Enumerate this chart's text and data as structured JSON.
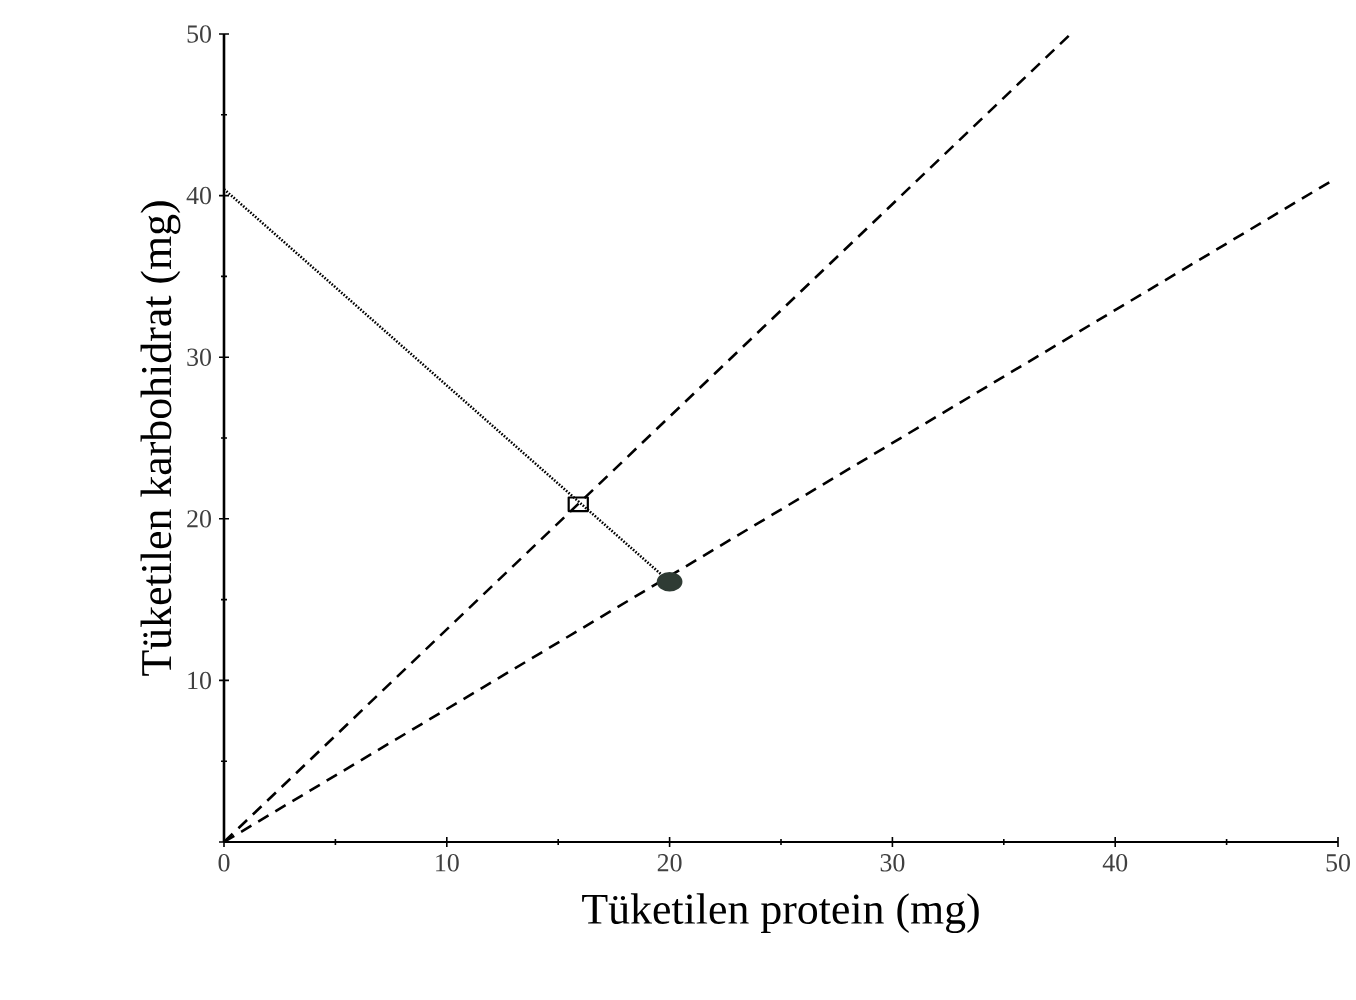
{
  "chart_data": {
    "type": "line",
    "xlabel": "Tüketilen protein (mg)",
    "ylabel": "Tüketilen karbohidrat (mg)",
    "xlim": [
      0,
      50
    ],
    "ylim": [
      0,
      50
    ],
    "xticks": [
      0,
      10,
      20,
      30,
      40,
      50
    ],
    "yticks": [
      {
        "value": 0,
        "label": null
      },
      10,
      20,
      30,
      40,
      50
    ],
    "grid": false,
    "series": [
      {
        "x": [
          0,
          38
        ],
        "values": [
          0,
          50
        ],
        "color": "#000000",
        "line_style": "dashed"
      },
      {
        "x": [
          0,
          49.7
        ],
        "values": [
          0,
          40.9
        ],
        "color": "#000000",
        "line_style": "dashed"
      },
      {
        "x": [
          0,
          20
        ],
        "values": [
          40.4,
          16.1
        ],
        "color": "#000000",
        "line_style": "dotted"
      },
      {
        "type": "scatter",
        "x": [
          15.9
        ],
        "values": [
          20.9
        ],
        "color": "#000000",
        "marker": "square"
      },
      {
        "type": "scatter",
        "x": [
          20
        ],
        "values": [
          16.1
        ],
        "color": "#2f3b34",
        "marker": "circle"
      }
    ]
  }
}
